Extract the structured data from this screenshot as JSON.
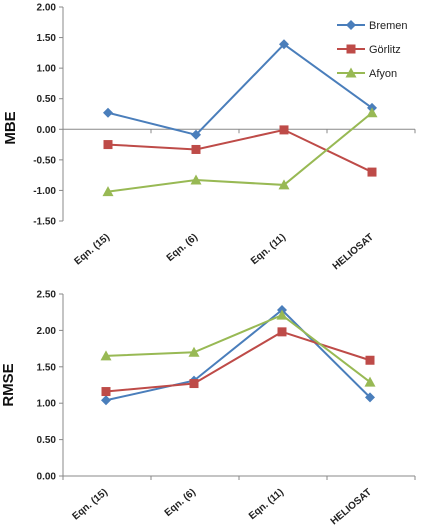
{
  "chart_data": [
    {
      "type": "line",
      "title": "",
      "xlabel": "",
      "ylabel": "MBE",
      "categories": [
        "Eqn. (15)",
        "Eqn. (6)",
        "Eqn. (11)",
        "HELIOSAT"
      ],
      "ylim": [
        -1.5,
        2.0
      ],
      "yticks": [
        "2.00",
        "1.50",
        "1.00",
        "0.50",
        "0.00",
        "-0.50",
        "-1.00",
        "-1.50"
      ],
      "legend_position": "top-right",
      "series": [
        {
          "name": "Bremen",
          "color": "#4a7ebb",
          "marker": "diamond",
          "values": [
            0.27,
            -0.09,
            1.39,
            0.35
          ]
        },
        {
          "name": "Görlitz",
          "color": "#be4b48",
          "marker": "square",
          "values": [
            -0.25,
            -0.33,
            -0.01,
            -0.7
          ]
        },
        {
          "name": "Afyon",
          "color": "#98b954",
          "marker": "triangle",
          "values": [
            -1.02,
            -0.83,
            -0.91,
            0.27
          ]
        }
      ]
    },
    {
      "type": "line",
      "title": "",
      "xlabel": "",
      "ylabel": "RMSE",
      "categories": [
        "Eqn. (15)",
        "Eqn. (6)",
        "Eqn. (11)",
        "HELIOSAT"
      ],
      "ylim": [
        0.0,
        2.5
      ],
      "yticks": [
        "2.50",
        "2.00",
        "1.50",
        "1.00",
        "0.50",
        "0.00"
      ],
      "series": [
        {
          "name": "Bremen",
          "color": "#4a7ebb",
          "marker": "diamond",
          "values": [
            1.04,
            1.31,
            2.28,
            1.08
          ]
        },
        {
          "name": "Görlitz",
          "color": "#be4b48",
          "marker": "square",
          "values": [
            1.16,
            1.27,
            1.98,
            1.59
          ]
        },
        {
          "name": "Afyon",
          "color": "#98b954",
          "marker": "triangle",
          "values": [
            1.65,
            1.7,
            2.21,
            1.29
          ]
        }
      ]
    }
  ]
}
